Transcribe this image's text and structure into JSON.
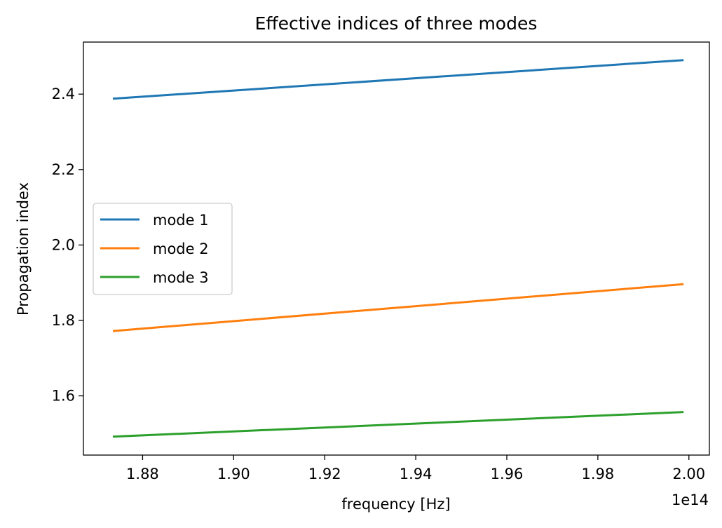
{
  "chart_data": {
    "type": "line",
    "title": "Effective indices of three modes",
    "xlabel": "frequency [Hz]",
    "ylabel": "Propagation index",
    "x_offset_label": "1e14",
    "x_scale_factor": 100000000000000.0,
    "xlim": [
      1.867,
      2.0045
    ],
    "ylim": [
      1.443,
      2.538
    ],
    "xticks": [
      1.88,
      1.9,
      1.92,
      1.94,
      1.96,
      1.98,
      2.0
    ],
    "xtick_labels": [
      "1.88",
      "1.90",
      "1.92",
      "1.94",
      "1.96",
      "1.98",
      "2.00"
    ],
    "yticks": [
      1.6,
      1.8,
      2.0,
      2.2,
      2.4
    ],
    "ytick_labels": [
      "1.6",
      "1.8",
      "2.0",
      "2.2",
      "2.4"
    ],
    "grid": false,
    "legend_position": "center-left",
    "series": [
      {
        "name": "mode 1",
        "color": "#1f77b4",
        "x": [
          1.8737,
          1.9986
        ],
        "y": [
          2.388,
          2.49
        ]
      },
      {
        "name": "mode 2",
        "color": "#ff7f0e",
        "x": [
          1.8737,
          1.9986
        ],
        "y": [
          1.772,
          1.896
        ]
      },
      {
        "name": "mode 3",
        "color": "#2ca02c",
        "x": [
          1.8737,
          1.9986
        ],
        "y": [
          1.492,
          1.557
        ]
      }
    ]
  }
}
